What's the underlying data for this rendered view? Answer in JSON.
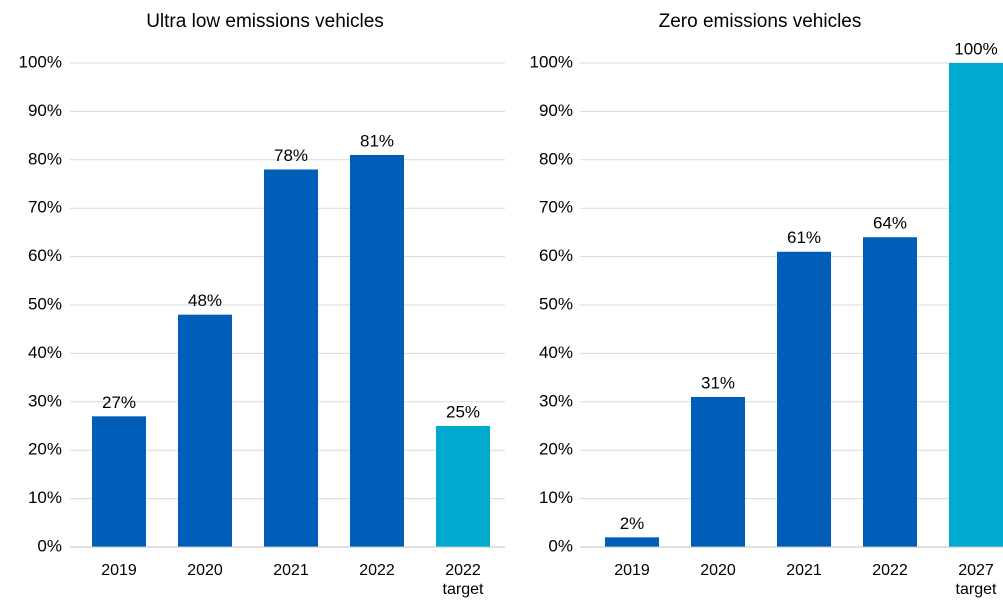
{
  "chart_data": [
    {
      "type": "bar",
      "title": "Ultra low emissions vehicles",
      "categories": [
        "2019",
        "2020",
        "2021",
        "2022",
        "2022 target"
      ],
      "values": [
        27,
        48,
        78,
        81,
        25
      ],
      "value_labels": [
        "27%",
        "48%",
        "78%",
        "81%",
        "25%"
      ],
      "colors": [
        "#005eb8",
        "#005eb8",
        "#005eb8",
        "#005eb8",
        "#00a9ce"
      ],
      "ylim": [
        0,
        100
      ],
      "yticks": [
        {
          "value": 0,
          "label": "0%"
        },
        {
          "value": 10,
          "label": "10%"
        },
        {
          "value": 20,
          "label": "20%"
        },
        {
          "value": 30,
          "label": "30%"
        },
        {
          "value": 40,
          "label": "40%"
        },
        {
          "value": 50,
          "label": "50%"
        },
        {
          "value": 60,
          "label": "60%"
        },
        {
          "value": 70,
          "label": "70%"
        },
        {
          "value": 80,
          "label": "80%"
        },
        {
          "value": 90,
          "label": "90%"
        },
        {
          "value": 100,
          "label": "100%"
        }
      ],
      "grid": true
    },
    {
      "type": "bar",
      "title": "Zero emissions vehicles",
      "categories": [
        "2019",
        "2020",
        "2021",
        "2022",
        "2027 target"
      ],
      "values": [
        2,
        31,
        61,
        64,
        100
      ],
      "value_labels": [
        "2%",
        "31%",
        "61%",
        "64%",
        "100%"
      ],
      "colors": [
        "#005eb8",
        "#005eb8",
        "#005eb8",
        "#005eb8",
        "#00a9ce"
      ],
      "ylim": [
        0,
        100
      ],
      "yticks": [
        {
          "value": 0,
          "label": "0%"
        },
        {
          "value": 10,
          "label": "10%"
        },
        {
          "value": 20,
          "label": "20%"
        },
        {
          "value": 30,
          "label": "30%"
        },
        {
          "value": 40,
          "label": "40%"
        },
        {
          "value": 50,
          "label": "50%"
        },
        {
          "value": 60,
          "label": "60%"
        },
        {
          "value": 70,
          "label": "70%"
        },
        {
          "value": 80,
          "label": "80%"
        },
        {
          "value": 90,
          "label": "90%"
        },
        {
          "value": 100,
          "label": "100%"
        }
      ],
      "grid": true
    }
  ]
}
